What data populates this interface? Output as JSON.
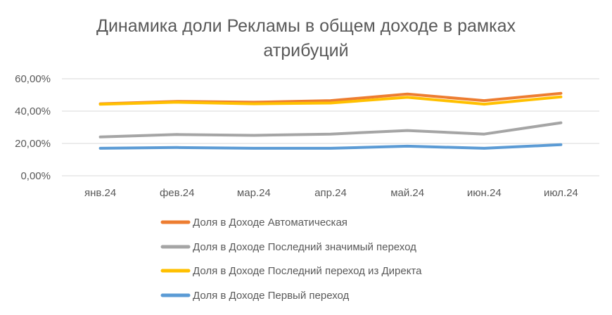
{
  "chart_data": {
    "type": "line",
    "title_lines": [
      "Динамика доли Рекламы в общем доходе в рамках",
      "атрибуций"
    ],
    "categories": [
      "янв.24",
      "фев.24",
      "мар.24",
      "апр.24",
      "май.24",
      "июн.24",
      "июл.24"
    ],
    "y_ticks": [
      "0,00%",
      "20,00%",
      "40,00%",
      "60,00%"
    ],
    "ylim": [
      0,
      60
    ],
    "grid": true,
    "legend_position": "bottom",
    "series": [
      {
        "name": "Доля в Доходе Автоматическая",
        "color": "#ED7D31",
        "values": [
          44.5,
          46,
          45.5,
          46.5,
          50.5,
          46.5,
          51
        ]
      },
      {
        "name": "Доля в Доходе Последний значимый переход",
        "color": "#A5A5A5",
        "values": [
          24,
          25.5,
          25,
          25.8,
          28,
          25.8,
          32.8
        ]
      },
      {
        "name": "Доля в Доходе Последний переход из Директа",
        "color": "#FFC000",
        "values": [
          44.2,
          45.5,
          44.5,
          45,
          48.5,
          44.3,
          48.8
        ]
      },
      {
        "name": "Доля в Доходе Первый переход",
        "color": "#5B9BD5",
        "values": [
          17,
          17.5,
          17,
          17,
          18.3,
          17,
          19.2
        ]
      }
    ]
  }
}
